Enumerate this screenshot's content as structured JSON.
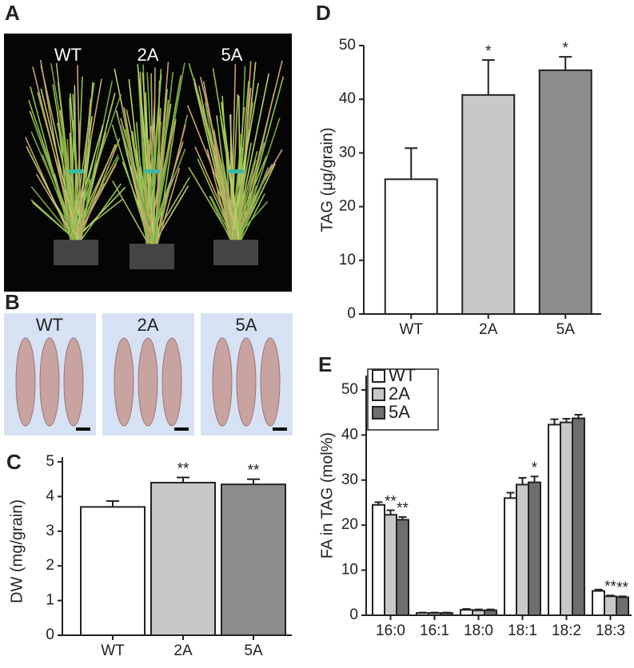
{
  "photo_a": {
    "panel_label": "A",
    "captions": [
      "WT",
      "2A",
      "5A"
    ]
  },
  "photo_b": {
    "panel_label": "B",
    "captions": [
      "WT",
      "2A",
      "5A"
    ]
  },
  "chart_data": [
    {
      "type": "bar",
      "panel_label": "C",
      "y_label": "DW (mg/grain)",
      "categories": [
        "WT",
        "2A",
        "5A"
      ],
      "values": [
        3.7,
        4.4,
        4.35
      ],
      "errors": [
        0.17,
        0.15,
        0.15
      ],
      "annotations": [
        null,
        "**",
        "**"
      ],
      "colors": [
        "#ffffff",
        "#c8c8c8",
        "#8c8c8c"
      ],
      "ylim": [
        0,
        5
      ],
      "yticks": [
        0,
        1,
        2,
        3,
        4,
        5
      ],
      "grid": false
    },
    {
      "type": "bar",
      "panel_label": "D",
      "y_label": "TAG  (μg/grain)",
      "categories": [
        "WT",
        "2A",
        "5A"
      ],
      "values": [
        25.1,
        40.8,
        45.4
      ],
      "errors": [
        5.8,
        6.5,
        2.5
      ],
      "annotations": [
        null,
        "*",
        "*"
      ],
      "colors": [
        "#ffffff",
        "#c8c8c8",
        "#8c8c8c"
      ],
      "ylim": [
        0,
        50
      ],
      "yticks": [
        0,
        10,
        20,
        30,
        40,
        50
      ],
      "grid": false
    },
    {
      "type": "grouped_bar",
      "panel_label": "E",
      "y_label": "FA in TAG (mol%)",
      "categories": [
        "16:0",
        "16:1",
        "18:0",
        "18:1",
        "18:2",
        "18:3"
      ],
      "series": [
        {
          "name": "WT",
          "color": "#ffffff",
          "values": [
            24.5,
            0.5,
            1.2,
            26,
            42.3,
            5.4
          ],
          "errors": [
            0.6,
            0.1,
            0.2,
            1.2,
            1.2,
            0.3
          ],
          "annotations": [
            null,
            null,
            null,
            null,
            null,
            null
          ]
        },
        {
          "name": "2A",
          "color": "#c8c8c8",
          "values": [
            22.3,
            0.5,
            1.1,
            29,
            42.8,
            4.2
          ],
          "errors": [
            1.0,
            0.1,
            0.2,
            1.5,
            0.8,
            0.2
          ],
          "annotations": [
            "**",
            null,
            null,
            null,
            null,
            "**"
          ]
        },
        {
          "name": "5A",
          "color": "#6e6e6e",
          "values": [
            21.2,
            0.5,
            1.1,
            29.5,
            43.7,
            4.0
          ],
          "errors": [
            0.6,
            0.1,
            0.2,
            1.3,
            0.8,
            0.2
          ],
          "annotations": [
            "**",
            null,
            null,
            "*",
            null,
            "**"
          ]
        }
      ],
      "ylim": [
        0,
        53
      ],
      "yticks": [
        0,
        10,
        20,
        30,
        40,
        50
      ],
      "grid": false,
      "legend": "top-left"
    }
  ]
}
